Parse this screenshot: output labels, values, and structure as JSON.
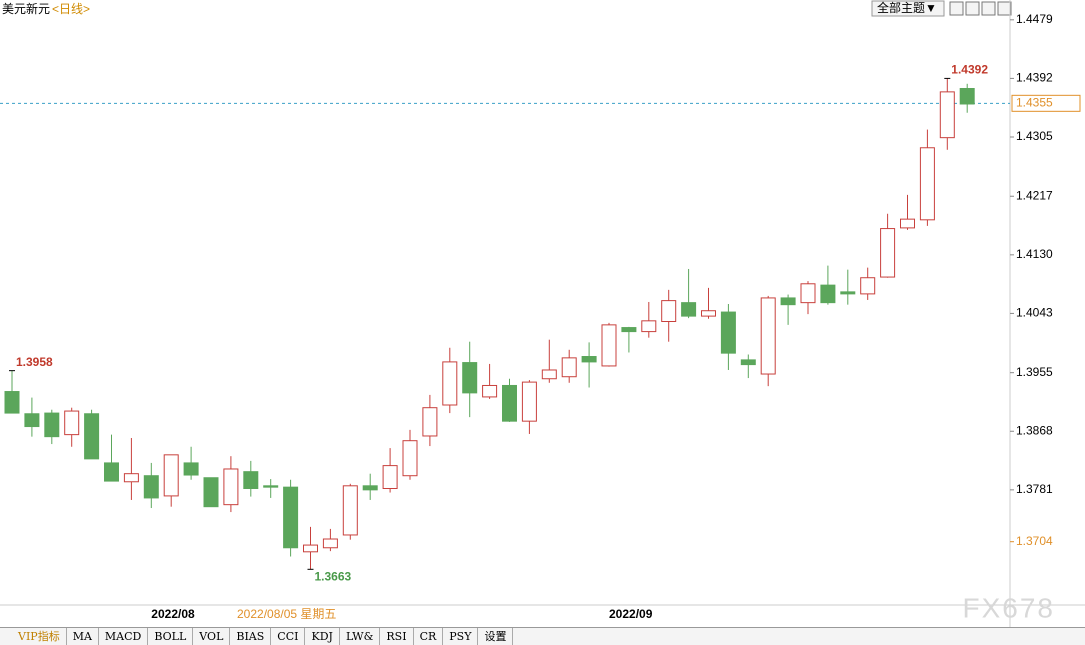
{
  "chart_data": {
    "type": "candlestick",
    "title": "美元新元",
    "subtitle": "<日线>",
    "categories": [
      null,
      null,
      null,
      null,
      null,
      null,
      null,
      "2022/08",
      null,
      null,
      null,
      null,
      null,
      null,
      null,
      null,
      null,
      null,
      null,
      null,
      null,
      null,
      null,
      null,
      null,
      null,
      null,
      null,
      null,
      null,
      "2022/09",
      null,
      null,
      null,
      null,
      null,
      null,
      null,
      null,
      null,
      null,
      null,
      null,
      null,
      null,
      null,
      null,
      null,
      null
    ],
    "open": [
      1.3927,
      1.3894,
      1.3895,
      1.3863,
      1.3894,
      1.3821,
      1.3793,
      1.3802,
      1.3772,
      1.3821,
      1.3799,
      1.3759,
      1.3808,
      1.3787,
      1.3785,
      1.3689,
      1.3695,
      1.3714,
      1.3787,
      1.3783,
      1.3802,
      1.3861,
      1.3907,
      1.397,
      1.3919,
      1.3936,
      1.3883,
      1.3946,
      1.3949,
      1.3979,
      1.3965,
      1.4022,
      1.4016,
      1.4031,
      1.4059,
      1.4039,
      1.4045,
      1.3974,
      1.3953,
      1.4066,
      1.4059,
      1.4085,
      1.4075,
      1.4072,
      1.4097,
      1.417,
      1.4182,
      1.4304,
      1.4377
    ],
    "high": [
      1.3958,
      1.3918,
      1.39,
      1.3903,
      1.39,
      1.3863,
      1.3858,
      1.3821,
      1.3833,
      1.3845,
      1.3799,
      1.3831,
      1.3824,
      1.3797,
      1.3796,
      1.3726,
      1.3723,
      1.379,
      1.3805,
      1.3843,
      1.387,
      1.3922,
      1.3992,
      1.4001,
      1.3968,
      1.3946,
      1.3944,
      1.4004,
      1.3989,
      1.4,
      1.4029,
      1.4023,
      1.406,
      1.4078,
      1.4109,
      1.4081,
      1.4057,
      1.3982,
      1.4069,
      1.4071,
      1.4091,
      1.4114,
      1.4108,
      1.4111,
      1.4191,
      1.4219,
      1.4316,
      1.4392,
      1.4384
    ],
    "low": [
      1.3895,
      1.386,
      1.3849,
      1.3845,
      1.3827,
      1.3794,
      1.3766,
      1.3754,
      1.3756,
      1.3796,
      1.3756,
      1.3748,
      1.3771,
      1.3769,
      1.3682,
      1.3663,
      1.369,
      1.3707,
      1.3766,
      1.3777,
      1.3796,
      1.3846,
      1.3895,
      1.3889,
      1.3916,
      1.3882,
      1.3864,
      1.394,
      1.394,
      1.3933,
      1.3964,
      1.3985,
      1.4007,
      1.4001,
      1.4036,
      1.4035,
      1.3959,
      1.3947,
      1.3935,
      1.4026,
      1.4042,
      1.4056,
      1.4056,
      1.4063,
      1.4096,
      1.4167,
      1.4173,
      1.4286,
      1.4341
    ],
    "close": [
      1.3895,
      1.3875,
      1.386,
      1.3898,
      1.3827,
      1.3794,
      1.3805,
      1.3769,
      1.3833,
      1.3803,
      1.3756,
      1.3812,
      1.3783,
      1.3785,
      1.3695,
      1.3699,
      1.3708,
      1.3787,
      1.3781,
      1.3817,
      1.3854,
      1.3903,
      1.3971,
      1.3925,
      1.3936,
      1.3883,
      1.3941,
      1.3959,
      1.3977,
      1.3971,
      1.4026,
      1.4016,
      1.4032,
      1.4062,
      1.4039,
      1.4047,
      1.3984,
      1.3967,
      1.4066,
      1.4056,
      1.4087,
      1.4059,
      1.4072,
      1.4096,
      1.4169,
      1.4183,
      1.4289,
      1.4372,
      1.4354
    ],
    "up_color": "#c8403c",
    "down_color": "#5ba65b",
    "extremes": [
      1.3958,
      1.3663,
      1.4392
    ],
    "last_price": 1.4355,
    "marker_price": 1.3704,
    "ylim": [
      1.361,
      1.4501
    ],
    "yticks": [
      1.4479,
      1.4392,
      1.4305,
      1.4217,
      {
        "value": 1.413,
        "label": "1.4130"
      },
      1.4043,
      1.3955,
      1.3868,
      1.3781
    ]
  },
  "ui": {
    "toolbar_button": "全部主题▼",
    "crosshair_date": "2022/08/05 星期五",
    "watermark": "FX678",
    "tabs": [
      "VIP指标",
      "MA",
      "MACD",
      "BOLL",
      "VOL",
      "BIAS",
      "CCI",
      "KDJ",
      "LW&",
      "RSI",
      "CR",
      "PSY",
      "设置"
    ]
  }
}
